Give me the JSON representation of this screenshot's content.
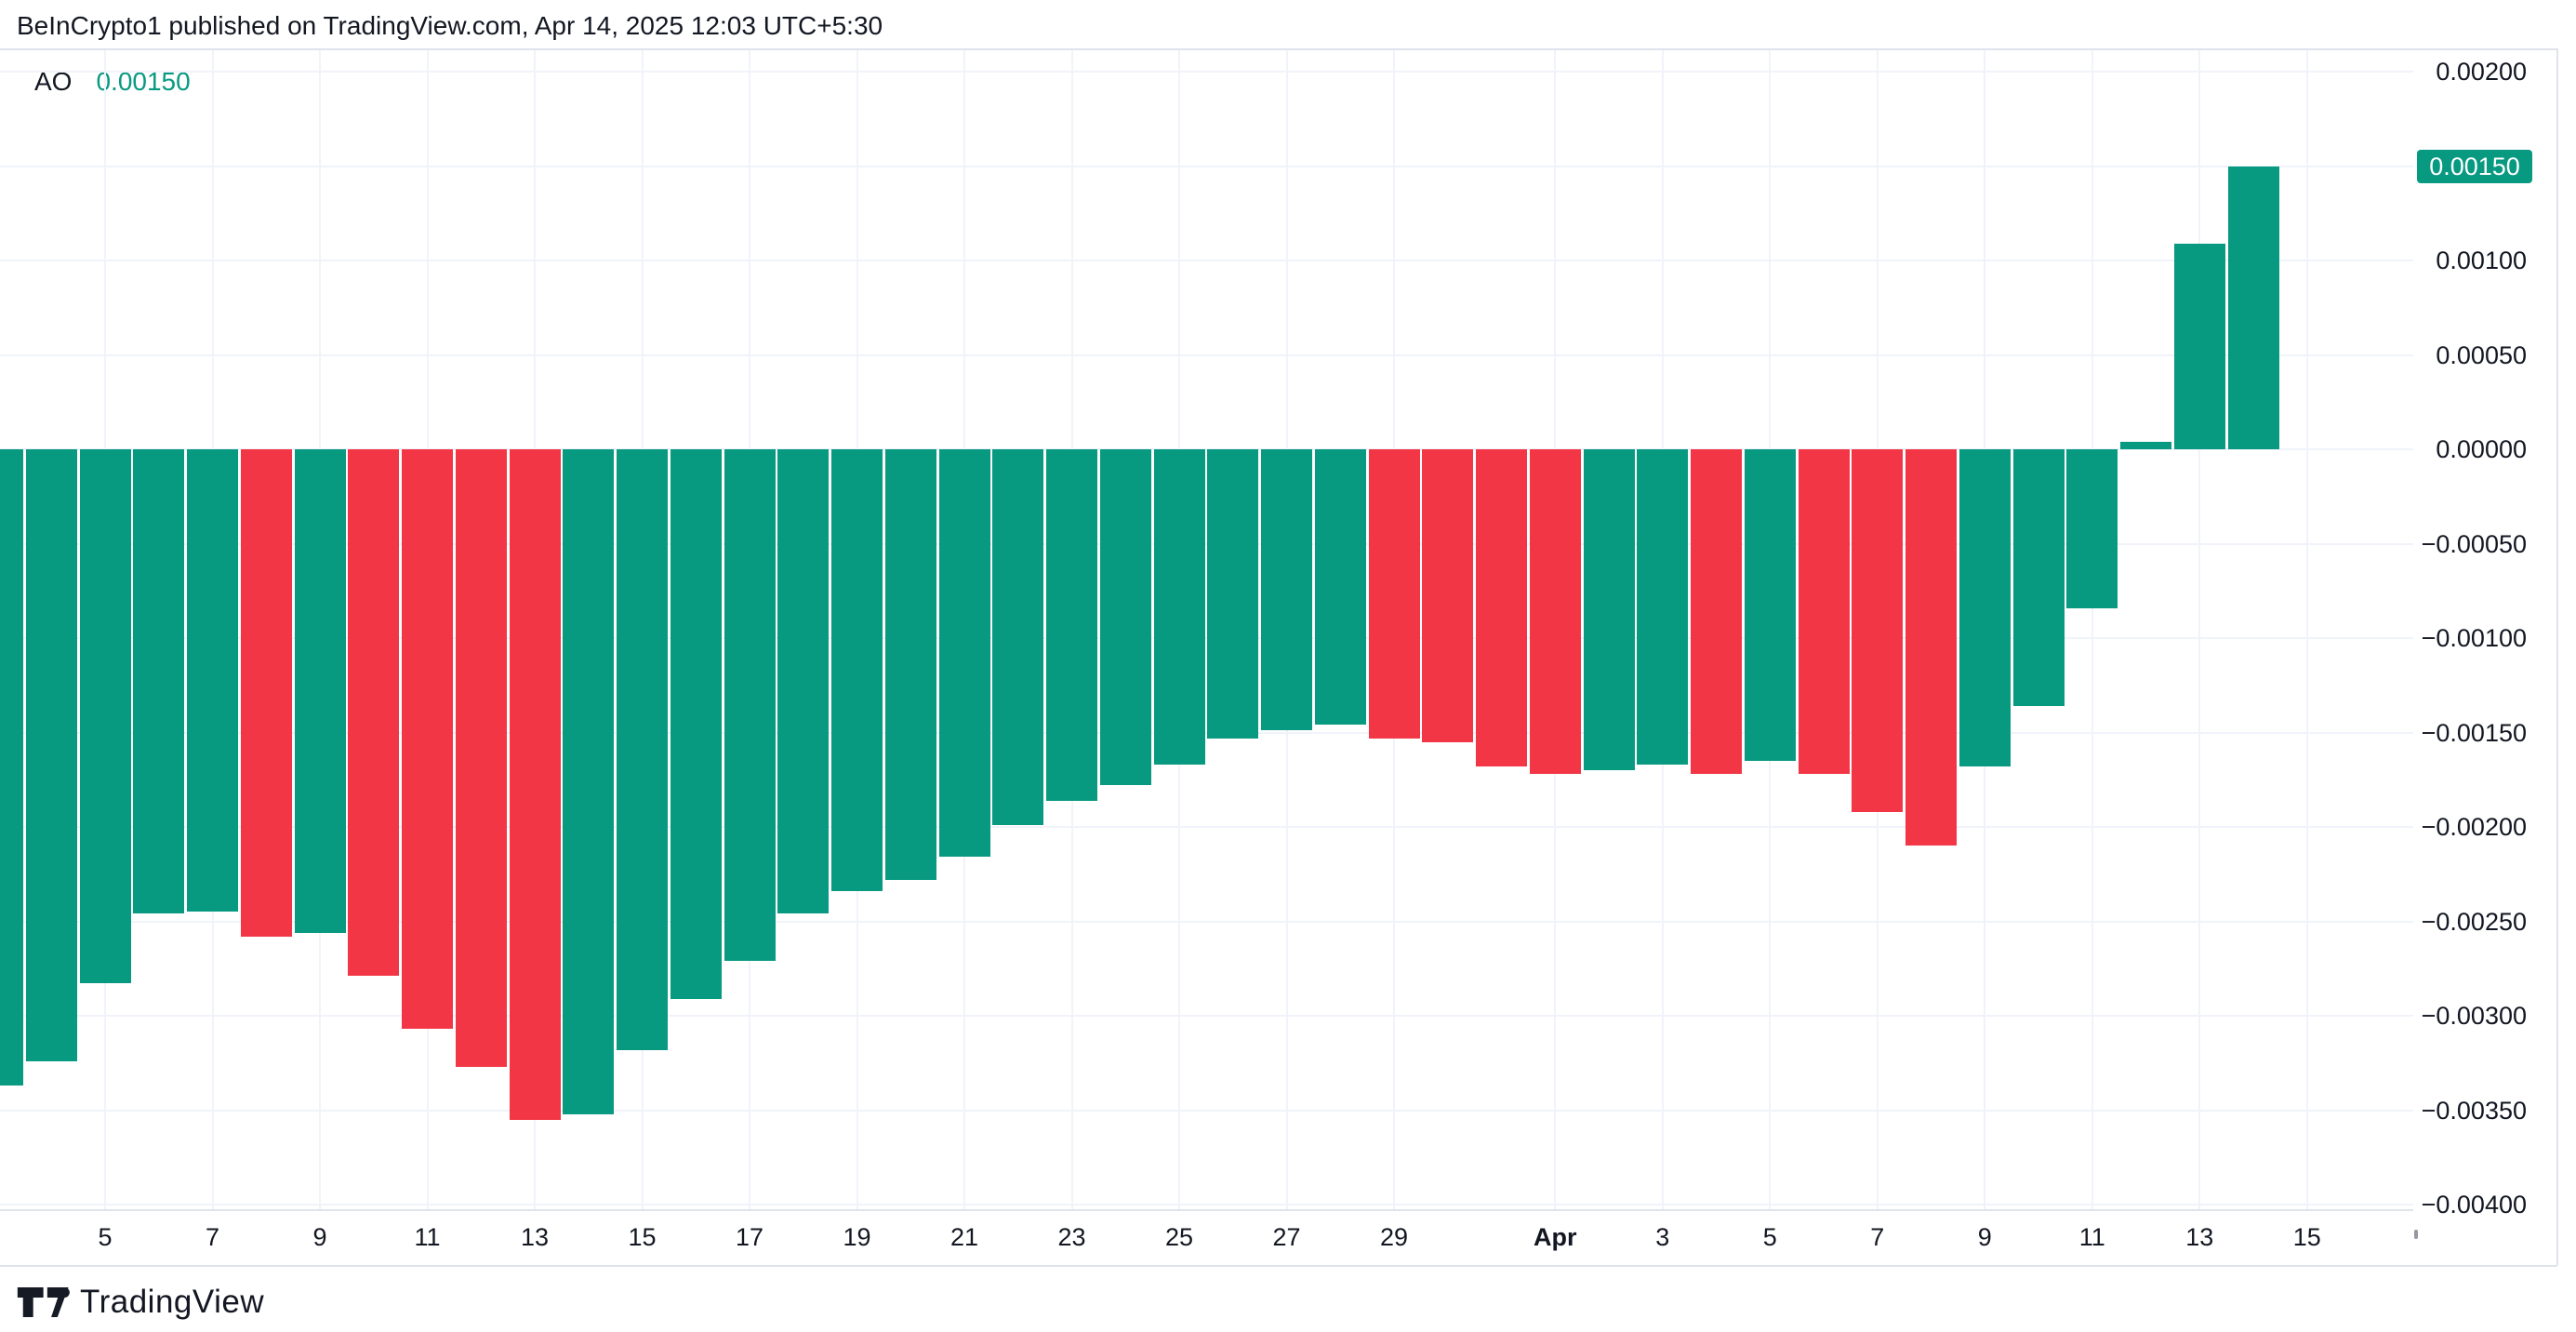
{
  "header": {
    "title": "BeInCrypto1 published on TradingView.com, Apr 14, 2025 12:03 UTC+5:30"
  },
  "indicator": {
    "name": "AO",
    "value": "0.00150"
  },
  "colors": {
    "up": "#089981",
    "down": "#F23645",
    "badge_bg": "#089981",
    "badge_text": "#ffffff",
    "grid": "#f0f3fa",
    "border": "#e0e3eb",
    "text": "#131722"
  },
  "y_axis": {
    "levels": [
      {
        "value": 0.002,
        "label": "0.00200"
      },
      {
        "value": 0.0015,
        "label": "0.00150",
        "badge": true
      },
      {
        "value": 0.001,
        "label": "0.00100"
      },
      {
        "value": 0.0005,
        "label": "0.00050"
      },
      {
        "value": 0.0,
        "label": "0.00000"
      },
      {
        "value": -0.0005,
        "label": "−0.00050"
      },
      {
        "value": -0.001,
        "label": "−0.00100"
      },
      {
        "value": -0.0015,
        "label": "−0.00150"
      },
      {
        "value": -0.002,
        "label": "−0.00200"
      },
      {
        "value": -0.0025,
        "label": "−0.00250"
      },
      {
        "value": -0.003,
        "label": "−0.00300"
      },
      {
        "value": -0.0035,
        "label": "−0.00350"
      },
      {
        "value": -0.004,
        "label": "−0.00400"
      }
    ]
  },
  "x_axis": {
    "ticks": [
      {
        "label": "5",
        "day_index": 2
      },
      {
        "label": "7",
        "day_index": 4
      },
      {
        "label": "9",
        "day_index": 6
      },
      {
        "label": "11",
        "day_index": 8
      },
      {
        "label": "13",
        "day_index": 10
      },
      {
        "label": "15",
        "day_index": 12
      },
      {
        "label": "17",
        "day_index": 14
      },
      {
        "label": "19",
        "day_index": 16
      },
      {
        "label": "21",
        "day_index": 18
      },
      {
        "label": "23",
        "day_index": 20
      },
      {
        "label": "25",
        "day_index": 22
      },
      {
        "label": "27",
        "day_index": 24
      },
      {
        "label": "29",
        "day_index": 26
      },
      {
        "label": "Apr",
        "day_index": 29,
        "bold": true
      },
      {
        "label": "3",
        "day_index": 31
      },
      {
        "label": "5",
        "day_index": 33
      },
      {
        "label": "7",
        "day_index": 35
      },
      {
        "label": "9",
        "day_index": 37
      },
      {
        "label": "11",
        "day_index": 39
      },
      {
        "label": "13",
        "day_index": 41
      },
      {
        "label": "15",
        "day_index": 43
      }
    ]
  },
  "chart_data": {
    "type": "bar",
    "title": "AO (Awesome Oscillator)",
    "xlabel": "",
    "ylabel": "",
    "ylim": [
      -0.00404,
      0.00212
    ],
    "grid": true,
    "legend_position": "none",
    "x": [
      "Mar 3",
      "Mar 4",
      "Mar 5",
      "Mar 6",
      "Mar 7",
      "Mar 8",
      "Mar 9",
      "Mar 10",
      "Mar 11",
      "Mar 12",
      "Mar 13",
      "Mar 14",
      "Mar 15",
      "Mar 16",
      "Mar 17",
      "Mar 18",
      "Mar 19",
      "Mar 20",
      "Mar 21",
      "Mar 22",
      "Mar 23",
      "Mar 24",
      "Mar 25",
      "Mar 26",
      "Mar 27",
      "Mar 28",
      "Mar 29",
      "Mar 30",
      "Mar 31",
      "Apr 1",
      "Apr 2",
      "Apr 3",
      "Apr 4",
      "Apr 5",
      "Apr 6",
      "Apr 7",
      "Apr 8",
      "Apr 9",
      "Apr 10",
      "Apr 11",
      "Apr 12",
      "Apr 13",
      "Apr 14"
    ],
    "values": [
      -0.00337,
      -0.00324,
      -0.00283,
      -0.00246,
      -0.00245,
      -0.00258,
      -0.00256,
      -0.00279,
      -0.00307,
      -0.00327,
      -0.00355,
      -0.00352,
      -0.00318,
      -0.00291,
      -0.00271,
      -0.00246,
      -0.00234,
      -0.00228,
      -0.00216,
      -0.00199,
      -0.00186,
      -0.00178,
      -0.00167,
      -0.00153,
      -0.00149,
      -0.00146,
      -0.00153,
      -0.00155,
      -0.00168,
      -0.00172,
      -0.0017,
      -0.00167,
      -0.00172,
      -0.00165,
      -0.00172,
      -0.00192,
      -0.0021,
      -0.00168,
      -0.00136,
      -0.00084,
      4e-05,
      0.00109,
      0.0015
    ],
    "directions": [
      "up",
      "up",
      "up",
      "up",
      "up",
      "down",
      "up",
      "down",
      "down",
      "down",
      "down",
      "up",
      "up",
      "up",
      "up",
      "up",
      "up",
      "up",
      "up",
      "up",
      "up",
      "up",
      "up",
      "up",
      "up",
      "up",
      "down",
      "down",
      "down",
      "down",
      "up",
      "up",
      "down",
      "up",
      "down",
      "down",
      "down",
      "up",
      "up",
      "up",
      "up",
      "up",
      "up"
    ]
  },
  "footer": {
    "brand": "TradingView"
  }
}
